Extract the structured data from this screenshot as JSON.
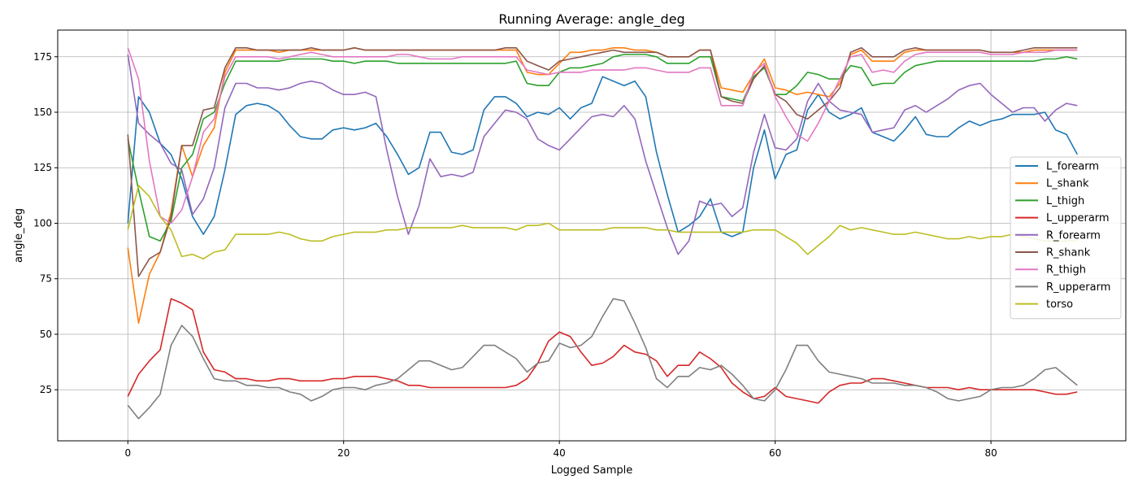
{
  "chart_data": {
    "type": "line",
    "title": "Running Average: angle_deg",
    "xlabel": "Logged Sample",
    "ylabel": "angle_deg",
    "xlim": [
      -6.5,
      92.5
    ],
    "ylim": [
      2,
      187
    ],
    "xticks": [
      0,
      20,
      40,
      60,
      80
    ],
    "yticks": [
      25,
      50,
      75,
      100,
      125,
      150,
      175
    ],
    "grid": true,
    "legend_position": "center-right",
    "series": [
      {
        "name": "L_forearm",
        "color": "#1f77b4",
        "values": [
          100,
          157,
          150,
          136,
          131,
          120,
          103,
          95,
          103,
          124,
          149,
          153,
          154,
          153,
          150,
          144,
          139,
          138,
          138,
          142,
          143,
          142,
          143,
          145,
          139,
          131,
          122,
          125,
          141,
          141,
          132,
          131,
          133,
          151,
          157,
          157,
          154,
          148,
          150,
          149,
          152,
          147,
          152,
          154,
          166,
          164,
          162,
          164,
          157,
          132,
          113,
          96,
          99,
          103,
          111,
          96,
          94,
          96,
          125,
          142,
          120,
          131,
          133,
          151,
          158,
          150,
          147,
          149,
          152,
          141,
          139,
          137,
          142,
          148,
          140,
          139,
          139,
          143,
          146,
          144,
          146,
          147,
          149,
          149,
          149,
          150,
          142,
          140,
          131
        ]
      },
      {
        "name": "L_shank",
        "color": "#ff7f0e",
        "values": [
          89,
          55,
          77,
          87,
          105,
          135,
          121,
          135,
          143,
          168,
          178,
          178,
          178,
          178,
          177,
          178,
          178,
          178,
          178,
          178,
          178,
          179,
          178,
          178,
          178,
          178,
          178,
          178,
          178,
          178,
          178,
          178,
          178,
          178,
          178,
          178,
          178,
          168,
          167,
          167,
          172,
          177,
          177,
          178,
          178,
          179,
          179,
          178,
          178,
          177,
          175,
          175,
          175,
          178,
          178,
          161,
          160,
          159,
          167,
          174,
          161,
          160,
          158,
          159,
          158,
          157,
          163,
          176,
          178,
          173,
          173,
          173,
          177,
          178,
          178,
          178,
          178,
          178,
          178,
          178,
          177,
          177,
          177,
          177,
          178,
          178,
          178,
          178,
          178
        ]
      },
      {
        "name": "L_thigh",
        "color": "#2ca02c",
        "values": [
          138,
          115,
          94,
          92,
          101,
          125,
          131,
          147,
          150,
          163,
          173,
          173,
          173,
          173,
          173,
          174,
          174,
          174,
          174,
          173,
          173,
          172,
          173,
          173,
          173,
          172,
          172,
          172,
          172,
          172,
          172,
          172,
          172,
          172,
          172,
          172,
          173,
          163,
          162,
          162,
          168,
          170,
          170,
          171,
          172,
          175,
          176,
          176,
          176,
          175,
          172,
          172,
          172,
          175,
          175,
          157,
          156,
          155,
          166,
          170,
          158,
          158,
          162,
          168,
          167,
          165,
          165,
          171,
          170,
          162,
          163,
          163,
          168,
          171,
          172,
          173,
          173,
          173,
          173,
          173,
          173,
          173,
          173,
          173,
          173,
          174,
          174,
          175,
          174
        ]
      },
      {
        "name": "L_upperarm",
        "color": "#d62728",
        "values": [
          22,
          32,
          38,
          43,
          66,
          64,
          61,
          42,
          34,
          33,
          30,
          30,
          29,
          29,
          30,
          30,
          29,
          29,
          29,
          30,
          30,
          31,
          31,
          31,
          30,
          29,
          27,
          27,
          26,
          26,
          26,
          26,
          26,
          26,
          26,
          26,
          27,
          30,
          37,
          47,
          51,
          49,
          42,
          36,
          37,
          40,
          45,
          42,
          41,
          38,
          31,
          36,
          36,
          42,
          39,
          35,
          28,
          24,
          21,
          22,
          26,
          22,
          21,
          20,
          19,
          24,
          27,
          28,
          28,
          30,
          30,
          29,
          28,
          27,
          26,
          26,
          26,
          25,
          26,
          25,
          25,
          25,
          25,
          25,
          25,
          24,
          23,
          23,
          24
        ]
      },
      {
        "name": "R_forearm",
        "color": "#9467bd",
        "values": [
          176,
          145,
          140,
          136,
          127,
          124,
          104,
          111,
          125,
          152,
          163,
          163,
          161,
          161,
          160,
          161,
          163,
          164,
          163,
          160,
          158,
          158,
          159,
          157,
          133,
          112,
          95,
          108,
          129,
          121,
          122,
          121,
          123,
          139,
          145,
          151,
          150,
          147,
          138,
          135,
          133,
          138,
          143,
          148,
          149,
          148,
          153,
          147,
          128,
          113,
          98,
          86,
          92,
          110,
          108,
          109,
          103,
          107,
          132,
          149,
          134,
          133,
          138,
          155,
          163,
          155,
          151,
          150,
          149,
          141,
          142,
          143,
          151,
          153,
          150,
          153,
          156,
          160,
          162,
          163,
          158,
          154,
          150,
          152,
          152,
          146,
          151,
          154,
          153
        ]
      },
      {
        "name": "R_shank",
        "color": "#8c564b",
        "values": [
          140,
          76,
          84,
          87,
          103,
          135,
          135,
          151,
          152,
          170,
          179,
          179,
          178,
          178,
          178,
          178,
          178,
          179,
          178,
          178,
          178,
          179,
          178,
          178,
          178,
          178,
          178,
          178,
          178,
          178,
          178,
          178,
          178,
          178,
          178,
          179,
          179,
          173,
          171,
          169,
          173,
          174,
          175,
          176,
          177,
          178,
          177,
          177,
          177,
          177,
          175,
          175,
          175,
          178,
          178,
          157,
          155,
          154,
          165,
          171,
          158,
          155,
          149,
          147,
          151,
          155,
          161,
          177,
          179,
          175,
          175,
          175,
          178,
          179,
          178,
          178,
          178,
          178,
          178,
          178,
          177,
          177,
          177,
          178,
          179,
          179,
          179,
          179,
          179
        ]
      },
      {
        "name": "R_thigh",
        "color": "#e377c2",
        "values": [
          179,
          165,
          128,
          103,
          100,
          106,
          121,
          141,
          147,
          166,
          175,
          175,
          175,
          175,
          174,
          175,
          176,
          177,
          176,
          175,
          175,
          175,
          175,
          175,
          175,
          176,
          176,
          175,
          174,
          174,
          174,
          175,
          175,
          175,
          175,
          175,
          175,
          169,
          168,
          167,
          168,
          168,
          168,
          169,
          169,
          169,
          169,
          170,
          170,
          169,
          168,
          168,
          168,
          170,
          170,
          153,
          153,
          153,
          168,
          172,
          157,
          148,
          140,
          137,
          145,
          155,
          165,
          175,
          176,
          168,
          169,
          168,
          173,
          176,
          177,
          177,
          177,
          177,
          177,
          177,
          176,
          176,
          176,
          177,
          177,
          177,
          178,
          178,
          178
        ]
      },
      {
        "name": "R_upperarm",
        "color": "#7f7f7f",
        "values": [
          18,
          12,
          17,
          23,
          45,
          54,
          49,
          39,
          30,
          29,
          29,
          27,
          27,
          26,
          26,
          24,
          23,
          20,
          22,
          25,
          26,
          26,
          25,
          27,
          28,
          30,
          34,
          38,
          38,
          36,
          34,
          35,
          40,
          45,
          45,
          42,
          39,
          33,
          37,
          38,
          46,
          44,
          45,
          49,
          58,
          66,
          65,
          55,
          44,
          30,
          26,
          31,
          31,
          35,
          34,
          36,
          32,
          27,
          21,
          20,
          25,
          34,
          45,
          45,
          38,
          33,
          32,
          31,
          30,
          28,
          28,
          28,
          27,
          27,
          26,
          24,
          21,
          20,
          21,
          22,
          25,
          26,
          26,
          27,
          30,
          34,
          35,
          31,
          27
        ]
      },
      {
        "name": "torso",
        "color": "#bcbd22",
        "values": [
          97,
          117,
          112,
          103,
          97,
          85,
          86,
          84,
          87,
          88,
          95,
          95,
          95,
          95,
          96,
          95,
          93,
          92,
          92,
          94,
          95,
          96,
          96,
          96,
          97,
          97,
          98,
          98,
          98,
          98,
          98,
          99,
          98,
          98,
          98,
          98,
          97,
          99,
          99,
          100,
          97,
          97,
          97,
          97,
          97,
          98,
          98,
          98,
          98,
          97,
          97,
          96,
          96,
          96,
          96,
          96,
          96,
          96,
          97,
          97,
          97,
          94,
          91,
          86,
          90,
          94,
          99,
          97,
          98,
          97,
          96,
          95,
          95,
          96,
          95,
          94,
          93,
          93,
          94,
          93,
          94,
          94,
          95,
          94,
          93,
          92,
          92,
          92,
          92
        ]
      }
    ]
  }
}
